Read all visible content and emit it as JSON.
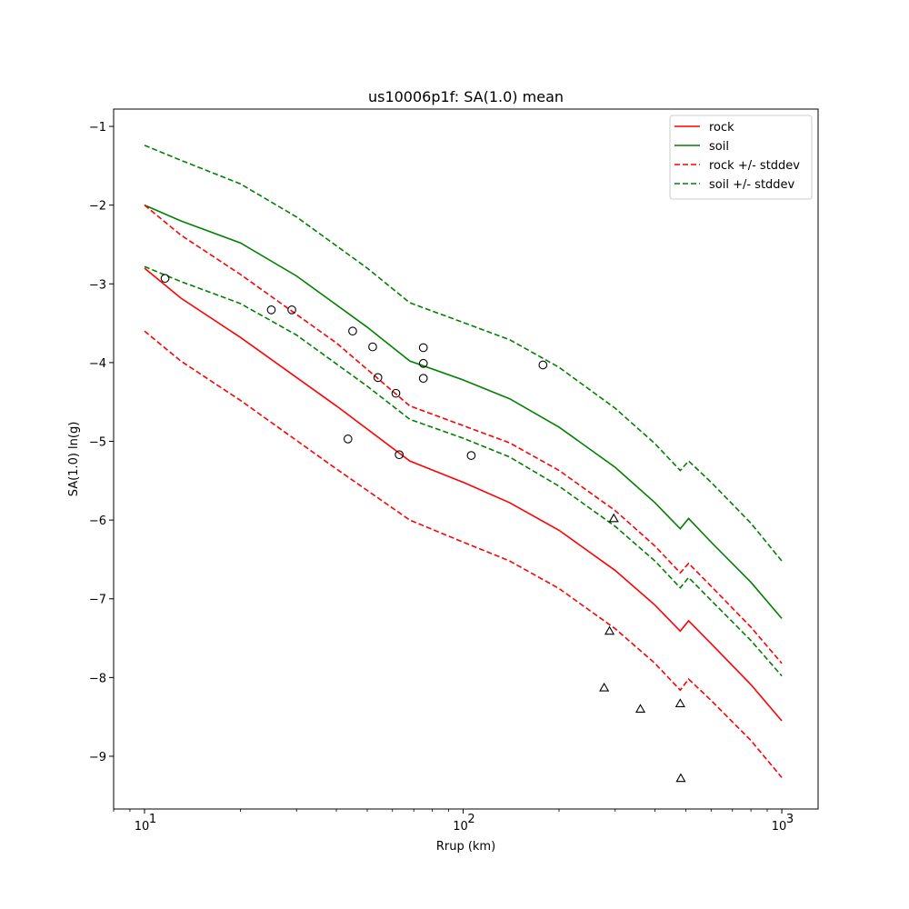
{
  "chart_data": {
    "type": "line",
    "title": "us10006p1f: SA(1.0) mean",
    "xlabel": "Rrup (km)",
    "ylabel": "SA(1.0) ln(g)",
    "xscale": "log",
    "xlim": [
      8.0,
      1300.0
    ],
    "ylim": [
      -9.67,
      -0.78
    ],
    "yticks": [
      -9,
      -8,
      -7,
      -6,
      -5,
      -4,
      -3,
      -2,
      -1
    ],
    "ytick_labels": [
      "−9",
      "−8",
      "−7",
      "−6",
      "−5",
      "−4",
      "−3",
      "−2",
      "−1"
    ],
    "xticks": [
      {
        "base": "10",
        "exp": "1",
        "value": 10
      },
      {
        "base": "10",
        "exp": "2",
        "value": 100
      },
      {
        "base": "10",
        "exp": "3",
        "value": 1000
      }
    ],
    "legend_position": "top-right",
    "grid": false,
    "series": [
      {
        "name": "rock",
        "color": "#ff0000",
        "style": "solid",
        "x": [
          10,
          13,
          20,
          40,
          68,
          100,
          140,
          200,
          300,
          400,
          480,
          510,
          600,
          800,
          1000
        ],
        "y": [
          -2.8,
          -3.18,
          -3.68,
          -4.55,
          -5.25,
          -5.52,
          -5.78,
          -6.13,
          -6.64,
          -7.08,
          -7.41,
          -7.28,
          -7.57,
          -8.09,
          -8.55
        ]
      },
      {
        "name": "soil",
        "color": "#008000",
        "style": "solid",
        "x": [
          10,
          13,
          20,
          30,
          50,
          68,
          100,
          140,
          200,
          300,
          400,
          480,
          510,
          600,
          800,
          1000
        ],
        "y": [
          -2.0,
          -2.2,
          -2.48,
          -2.9,
          -3.55,
          -3.98,
          -4.22,
          -4.46,
          -4.82,
          -5.33,
          -5.78,
          -6.11,
          -5.98,
          -6.28,
          -6.79,
          -7.25
        ]
      },
      {
        "name": "rock +/- stddev",
        "color": "#ff0000",
        "style": "dashed",
        "x": [
          10,
          13,
          20,
          40,
          68,
          100,
          140,
          200,
          300,
          400,
          480,
          510,
          600,
          800,
          1000
        ],
        "y": [
          -2.0,
          -2.38,
          -2.88,
          -3.75,
          -4.55,
          -4.8,
          -5.02,
          -5.37,
          -5.88,
          -6.33,
          -6.67,
          -6.55,
          -6.84,
          -7.36,
          -7.82
        ]
      },
      {
        "name": "",
        "color": "#ff0000",
        "style": "dashed",
        "x": [
          10,
          13,
          20,
          40,
          68,
          100,
          140,
          200,
          300,
          400,
          480,
          510,
          600,
          800,
          1000
        ],
        "y": [
          -3.6,
          -3.98,
          -4.48,
          -5.35,
          -6.0,
          -6.28,
          -6.52,
          -6.87,
          -7.38,
          -7.82,
          -8.16,
          -8.02,
          -8.29,
          -8.8,
          -9.27
        ]
      },
      {
        "name": "soil +/- stddev",
        "color": "#008000",
        "style": "dashed",
        "x": [
          10,
          13,
          20,
          30,
          50,
          68,
          100,
          140,
          200,
          300,
          400,
          480,
          510,
          600,
          800,
          1000
        ],
        "y": [
          -1.24,
          -1.43,
          -1.73,
          -2.15,
          -2.8,
          -3.24,
          -3.49,
          -3.71,
          -4.06,
          -4.58,
          -5.03,
          -5.37,
          -5.25,
          -5.52,
          -6.04,
          -6.52
        ]
      },
      {
        "name": "",
        "color": "#008000",
        "style": "dashed",
        "x": [
          10,
          13,
          20,
          30,
          50,
          68,
          100,
          140,
          200,
          300,
          400,
          480,
          510,
          600,
          800,
          1000
        ],
        "y": [
          -2.78,
          -2.97,
          -3.25,
          -3.65,
          -4.3,
          -4.72,
          -4.96,
          -5.2,
          -5.57,
          -6.08,
          -6.52,
          -6.86,
          -6.73,
          -7.02,
          -7.53,
          -7.98
        ]
      }
    ],
    "scatter": [
      {
        "marker": "circle",
        "points": [
          [
            11.6,
            -2.93
          ],
          [
            25.0,
            -3.33
          ],
          [
            29.0,
            -3.33
          ],
          [
            45.0,
            -3.6
          ],
          [
            52.0,
            -3.8
          ],
          [
            54.0,
            -4.19
          ],
          [
            75.0,
            -3.81
          ],
          [
            75.0,
            -4.01
          ],
          [
            75.0,
            -4.2
          ],
          [
            61.5,
            -4.39
          ],
          [
            43.5,
            -4.97
          ],
          [
            63.0,
            -5.17
          ],
          [
            106.0,
            -5.18
          ],
          [
            178.0,
            -4.03
          ]
        ]
      },
      {
        "marker": "triangle",
        "points": [
          [
            297.0,
            -5.98
          ],
          [
            288.0,
            -7.41
          ],
          [
            277.0,
            -8.13
          ],
          [
            360.0,
            -8.4
          ],
          [
            480.0,
            -8.33
          ],
          [
            482.0,
            -9.28
          ]
        ]
      }
    ]
  }
}
